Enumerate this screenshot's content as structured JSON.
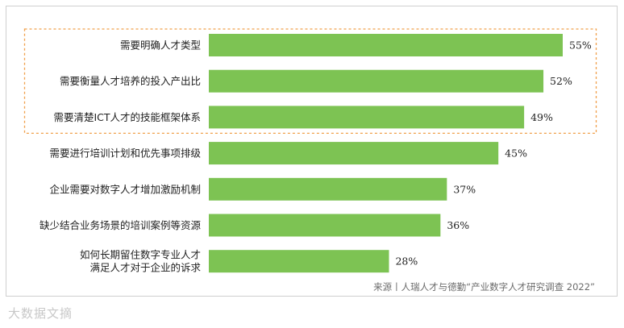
{
  "chart_data": {
    "type": "bar",
    "orientation": "horizontal",
    "categories": [
      [
        "需要明确人才类型"
      ],
      [
        "需要衡量人才培养的投入产出比"
      ],
      [
        "需要清楚ICT人才的技能框架体系"
      ],
      [
        "需要进行培训计划和优先事项排级"
      ],
      [
        "企业需要对数字人才增加激励机制"
      ],
      [
        "缺少结合业务场景的培训案例等资源"
      ],
      [
        "如何长期留住数字专业人才",
        "满足人才对于企业的诉求"
      ]
    ],
    "values": [
      55,
      52,
      49,
      45,
      37,
      36,
      28
    ],
    "value_labels": [
      "55%",
      "52%",
      "49%",
      "45%",
      "37%",
      "36%",
      "28%"
    ],
    "xlim": [
      0,
      55
    ],
    "bar_color": "#7dc353",
    "highlight": {
      "rows": [
        0,
        1,
        2
      ],
      "border_color": "#f0a04b",
      "style": "dashed"
    }
  },
  "source": "来源丨人瑞人才与德勤“产业数字人才研究调查 2022”",
  "watermark": "大数据文摘",
  "colors": {
    "frame": "#cfcfcf",
    "text": "#222222",
    "source": "#6b6b6b"
  }
}
